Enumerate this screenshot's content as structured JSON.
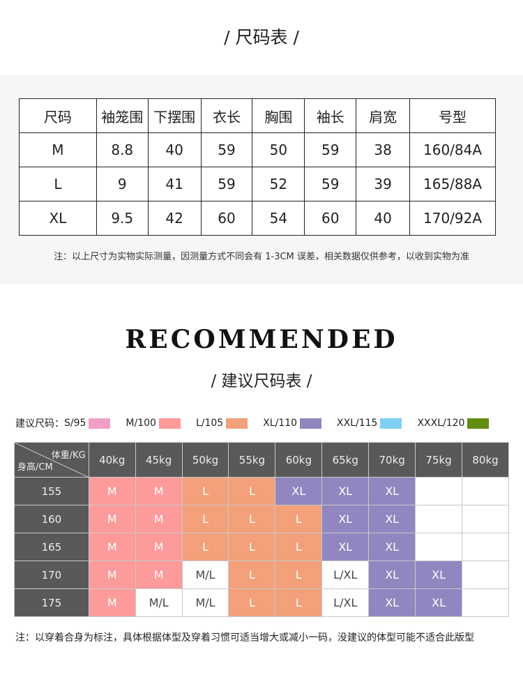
{
  "title": "/ 尺码表 /",
  "size_table": {
    "headers": [
      "尺码",
      "袖笼围",
      "下摆围",
      "衣长",
      "胸围",
      "袖长",
      "肩宽",
      "号型"
    ],
    "rows": [
      [
        "M",
        "8.8",
        "40",
        "59",
        "50",
        "59",
        "38",
        "160/84A"
      ],
      [
        "L",
        "9",
        "41",
        "59",
        "52",
        "59",
        "39",
        "165/88A"
      ],
      [
        "XL",
        "9.5",
        "42",
        "60",
        "54",
        "60",
        "40",
        "170/92A"
      ]
    ]
  },
  "note1": "注：以上尺寸为实物实际测量，因测量方式不同会有 1-3CM 误差，相关数据仅供参考，以收到实物为准",
  "recommended": "RECOMMENDED",
  "subtitle": "/ 建议尺码表 /",
  "legend": {
    "prefix": "建议尺码：",
    "items": [
      {
        "label": "S/95",
        "color": "#f29fc5"
      },
      {
        "label": "M/100",
        "color": "#fd9b9a"
      },
      {
        "label": "L/105",
        "color": "#f4a07a"
      },
      {
        "label": "XL/110",
        "color": "#9186c0"
      },
      {
        "label": "XXL/115",
        "color": "#7fcff5"
      },
      {
        "label": "XXXL/120",
        "color": "#628c12"
      }
    ]
  },
  "rec_table": {
    "corner_top": "体重/KG",
    "corner_bottom": "身高/CM",
    "weights": [
      "40kg",
      "45kg",
      "50kg",
      "55kg",
      "60kg",
      "65kg",
      "70kg",
      "75kg",
      "80kg"
    ],
    "rows": [
      {
        "height": "155",
        "cells": [
          "M",
          "M",
          "L",
          "L",
          "XL",
          "XL",
          "XL",
          "",
          ""
        ]
      },
      {
        "height": "160",
        "cells": [
          "M",
          "M",
          "L",
          "L",
          "L",
          "XL",
          "XL",
          "",
          ""
        ]
      },
      {
        "height": "165",
        "cells": [
          "M",
          "M",
          "L",
          "L",
          "L",
          "XL",
          "XL",
          "",
          ""
        ]
      },
      {
        "height": "170",
        "cells": [
          "M",
          "M",
          "M/L",
          "L",
          "L",
          "L/XL",
          "XL",
          "XL",
          ""
        ]
      },
      {
        "height": "175",
        "cells": [
          "M",
          "M/L",
          "M/L",
          "L",
          "L",
          "L/XL",
          "XL",
          "XL",
          ""
        ]
      }
    ],
    "colors": {
      "M": "#fd9b9a",
      "L": "#f4a07a",
      "XL": "#9186c0"
    },
    "mixed_text_color": "#444444"
  },
  "note2": "注：以穿着合身为标注，具体根据体型及穿着习惯可适当增大或减小一码，没建议的体型可能不适合此版型"
}
